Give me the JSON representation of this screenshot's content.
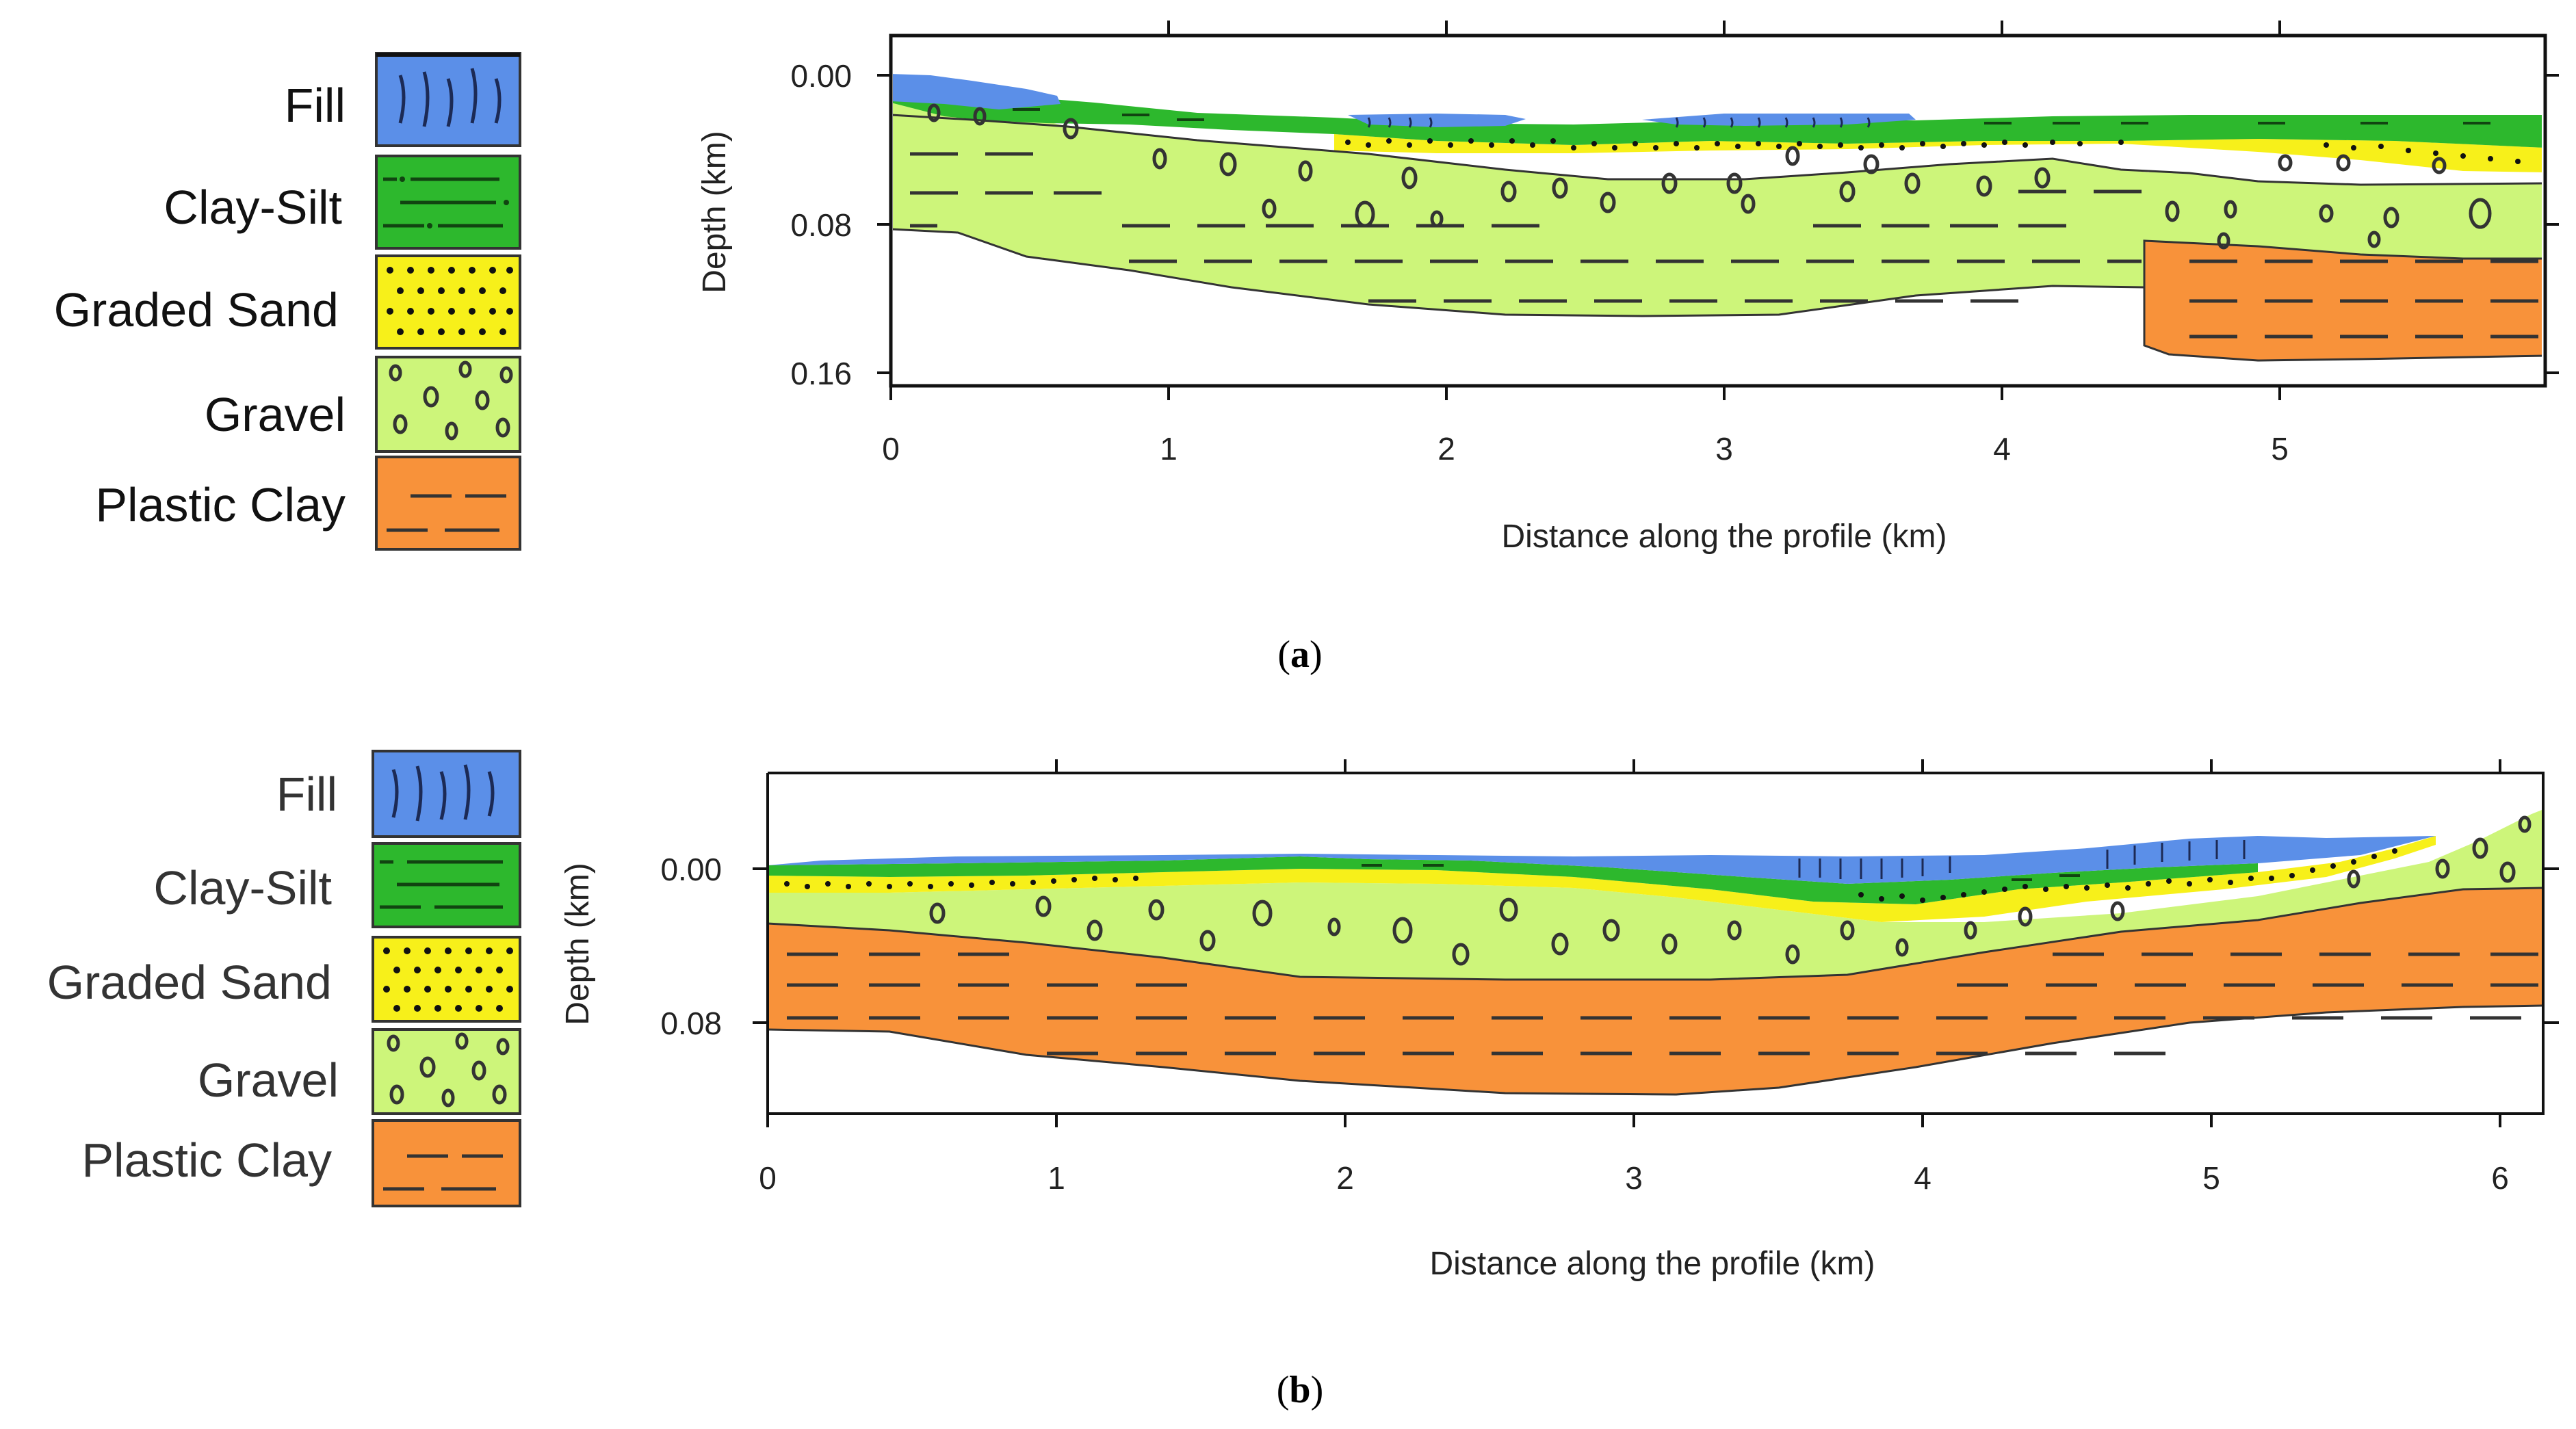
{
  "colors": {
    "fill": "#5b8fe8",
    "clay_silt": "#2db82d",
    "graded_sand": "#f7f01a",
    "gravel": "#cdf57a",
    "plastic_clay": "#f8923a"
  },
  "legend": [
    {
      "key": "fill",
      "label": "Fill",
      "pattern": "fill-lines"
    },
    {
      "key": "clay_silt",
      "label": "Clay-Silt",
      "pattern": "dash-dot"
    },
    {
      "key": "graded_sand",
      "label": "Graded Sand",
      "pattern": "dots"
    },
    {
      "key": "gravel",
      "label": "Gravel",
      "pattern": "pebbles"
    },
    {
      "key": "plastic_clay",
      "label": "Plastic Clay",
      "pattern": "dashes"
    }
  ],
  "panels": [
    {
      "id": "a",
      "caption": "a",
      "xlabel": "Distance along the profile (km)",
      "ylabel": "Depth (km)",
      "x_ticks": [
        "0",
        "1",
        "2",
        "3",
        "4",
        "5"
      ],
      "y_ticks": [
        "0.00",
        "0.08",
        "0.16"
      ]
    },
    {
      "id": "b",
      "caption": "b",
      "xlabel": "Distance along the profile (km)",
      "ylabel": "Depth (km)",
      "x_ticks": [
        "0",
        "1",
        "2",
        "3",
        "4",
        "5",
        "6"
      ],
      "y_ticks": [
        "0.00",
        "0.08"
      ]
    }
  ]
}
